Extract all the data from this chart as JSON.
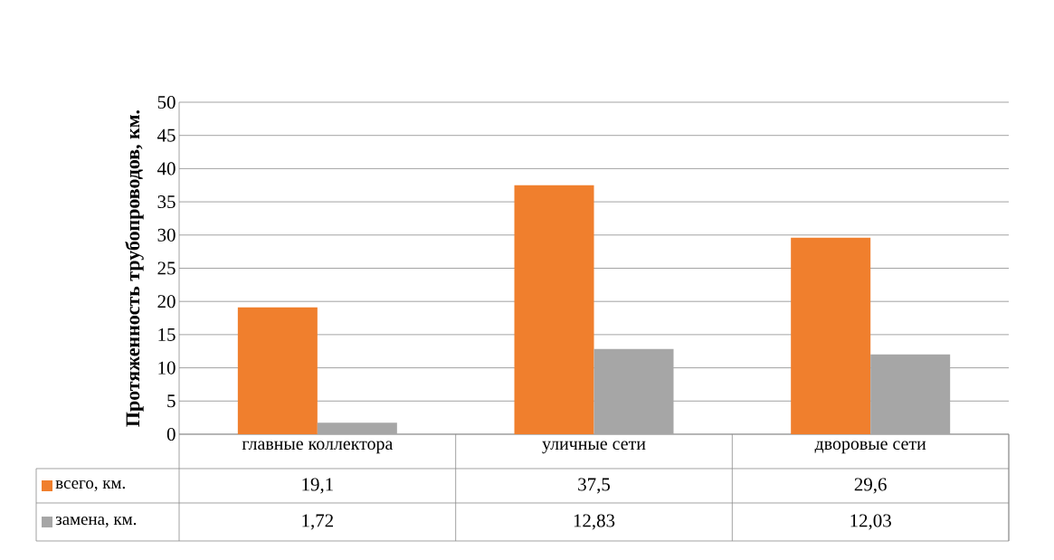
{
  "chart_data": {
    "type": "bar",
    "ylabel": "Протяженность трубопроводов, км.",
    "categories": [
      "главные коллектора",
      "уличные сети",
      "дворовые сети"
    ],
    "series": [
      {
        "name": "всего, км.",
        "color": "#f07f2d",
        "values": [
          19.1,
          37.5,
          29.6
        ],
        "value_labels": [
          "19,1",
          "37,5",
          "29,6"
        ]
      },
      {
        "name": "замена, км.",
        "color": "#a6a6a6",
        "values": [
          1.72,
          12.83,
          12.03
        ],
        "value_labels": [
          "1,72",
          "12,83",
          "12,03"
        ]
      }
    ],
    "ylim": [
      0,
      50
    ],
    "yticks": [
      0,
      5,
      10,
      15,
      20,
      25,
      30,
      35,
      40,
      45,
      50
    ],
    "grid": "y",
    "legend": "bottom"
  }
}
